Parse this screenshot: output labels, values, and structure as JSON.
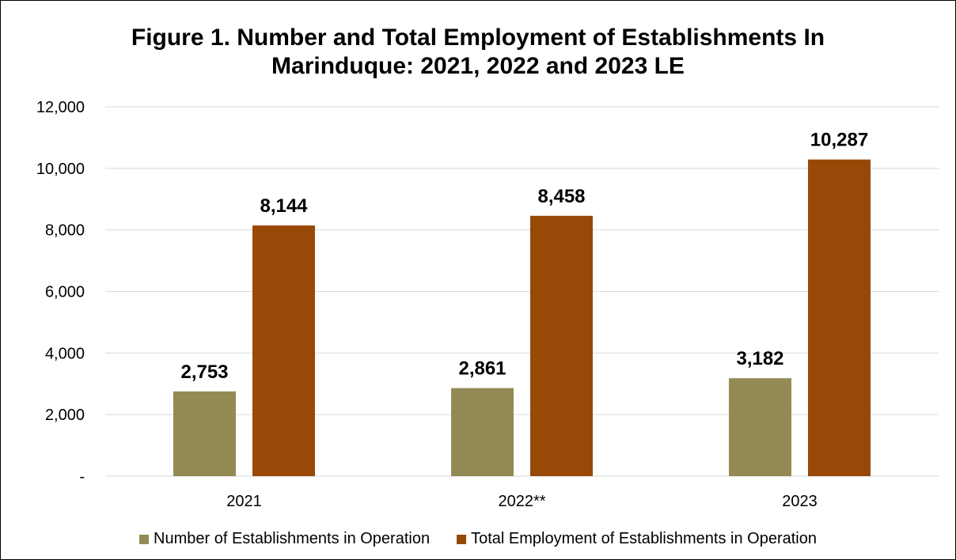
{
  "chart_data": {
    "type": "bar",
    "title_lines": [
      "Figure 1. Number and Total Employment of Establishments In",
      "Marinduque: 2021, 2022 and 2023 LE"
    ],
    "categories": [
      "2021",
      "2022**",
      "2023"
    ],
    "series": [
      {
        "name": "Number of Establishments in Operation",
        "values": [
          2753,
          2861,
          3182
        ],
        "labels": [
          "2,753",
          "2,861",
          "3,182"
        ],
        "color": "#948A54"
      },
      {
        "name": "Total Employment of Establishments in Operation",
        "values": [
          8144,
          8458,
          10287
        ],
        "labels": [
          "8,144",
          "8,458",
          "10,287"
        ],
        "color": "#984807"
      }
    ],
    "ylim": [
      0,
      12000
    ],
    "yticks": [
      0,
      2000,
      4000,
      6000,
      8000,
      10000,
      12000
    ],
    "ytick_labels": [
      "-",
      "2,000",
      "4,000",
      "6,000",
      "8,000",
      "10,000",
      "12,000"
    ],
    "grid": true,
    "gridline_color": "#D9D9D9",
    "legend_position": "bottom"
  }
}
